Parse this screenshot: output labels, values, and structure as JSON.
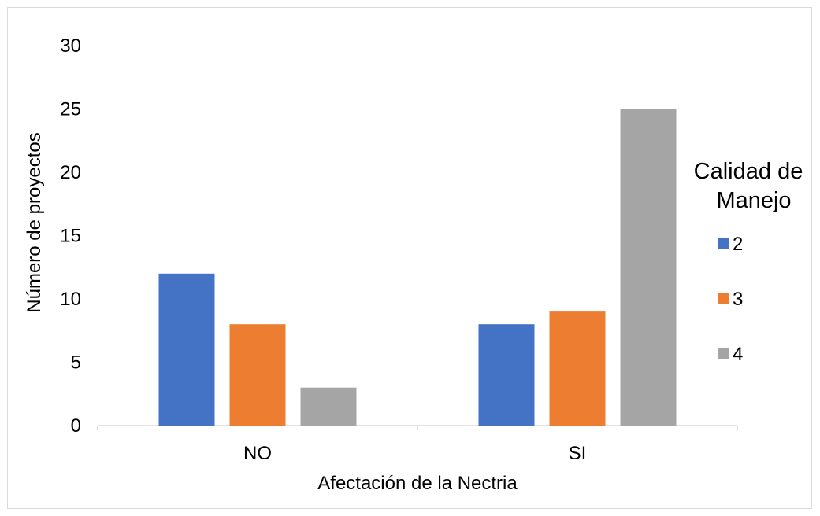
{
  "chart_data": {
    "type": "bar",
    "categories": [
      "NO",
      "SI"
    ],
    "series": [
      {
        "name": "2",
        "values": [
          12,
          8
        ],
        "color": "#4472c4"
      },
      {
        "name": "3",
        "values": [
          8,
          9
        ],
        "color": "#ed7d31"
      },
      {
        "name": "4",
        "values": [
          3,
          25
        ],
        "color": "#a5a5a5"
      }
    ],
    "xlabel": "Afectación de la Nectria",
    "ylabel": "Número de proyectos",
    "ylim": [
      0,
      30
    ],
    "yticks": [
      0,
      5,
      10,
      15,
      20,
      25,
      30
    ],
    "grid": false,
    "legend": {
      "title_lines": [
        "Calidad de",
        "Manejo"
      ],
      "position": "right"
    }
  }
}
